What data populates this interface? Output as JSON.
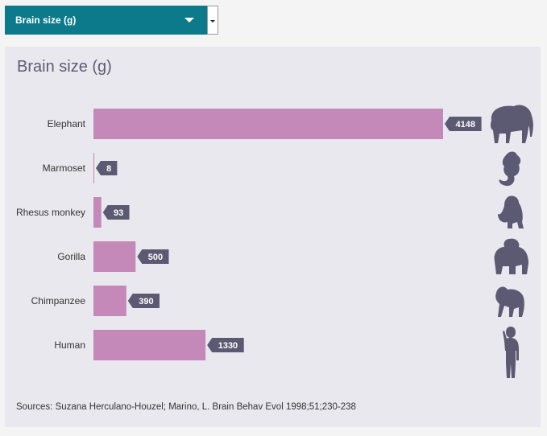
{
  "dropdown": {
    "selected": "Brain size (g)"
  },
  "chart_data": {
    "type": "bar",
    "orientation": "horizontal",
    "title": "Brain size (g)",
    "categories": [
      "Elephant",
      "Marmoset",
      "Rhesus monkey",
      "Gorilla",
      "Chimpanzee",
      "Human"
    ],
    "values": [
      4148,
      8,
      93,
      500,
      390,
      1330
    ],
    "icons": [
      "elephant-icon",
      "marmoset-icon",
      "rhesus-monkey-icon",
      "gorilla-icon",
      "chimpanzee-icon",
      "human-icon"
    ],
    "xlim": [
      0,
      4148
    ],
    "grid": false,
    "legend": "none",
    "colors": {
      "bar": "#c589b9",
      "label_bg": "#5b5a72",
      "icon": "#5b5a72",
      "accent": "#0d7a8c"
    }
  },
  "source": "Sources: Suzana Herculano-Houzel; Marino, L. Brain Behav Evol 1998;51;230-238"
}
